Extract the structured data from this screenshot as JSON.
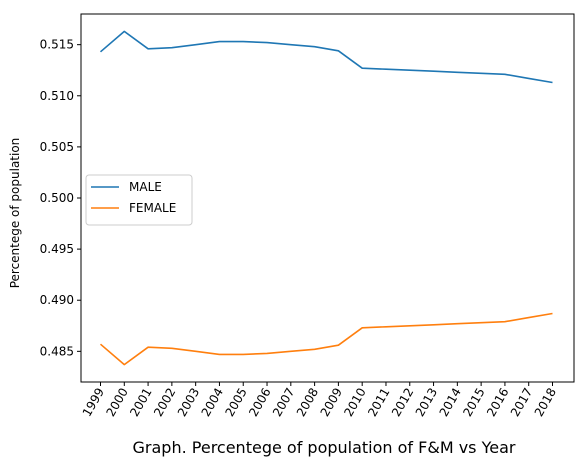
{
  "chart_data": {
    "type": "line",
    "title": "",
    "xlabel": "Graph. Percentege of population of F&M vs Year",
    "ylabel": "Percentege of population",
    "categories": [
      "1999",
      "2000",
      "2001",
      "2002",
      "2003",
      "2004",
      "2005",
      "2006",
      "2007",
      "2008",
      "2009",
      "2010",
      "2011",
      "2012",
      "2013",
      "2014",
      "2015",
      "2016",
      "2017",
      "2018"
    ],
    "series": [
      {
        "name": "MALE",
        "color": "#1f77b4",
        "values": [
          0.5143,
          0.5163,
          0.5146,
          0.5147,
          0.515,
          0.5153,
          0.5153,
          0.5152,
          0.515,
          0.5148,
          0.5144,
          0.5127,
          0.5126,
          0.5125,
          0.5124,
          0.5123,
          0.5122,
          0.5121,
          0.5117,
          0.5113
        ]
      },
      {
        "name": "FEMALE",
        "color": "#ff7f0e",
        "values": [
          0.4857,
          0.4837,
          0.4854,
          0.4853,
          0.485,
          0.4847,
          0.4847,
          0.4848,
          0.485,
          0.4852,
          0.4856,
          0.4873,
          0.4874,
          0.4875,
          0.4876,
          0.4877,
          0.4878,
          0.4879,
          0.4883,
          0.4887
        ]
      }
    ],
    "yticks": [
      "0.485",
      "0.490",
      "0.495",
      "0.500",
      "0.505",
      "0.510",
      "0.515"
    ],
    "ylim": [
      0.482,
      0.518
    ],
    "grid": false,
    "legend_position": "center-left"
  }
}
